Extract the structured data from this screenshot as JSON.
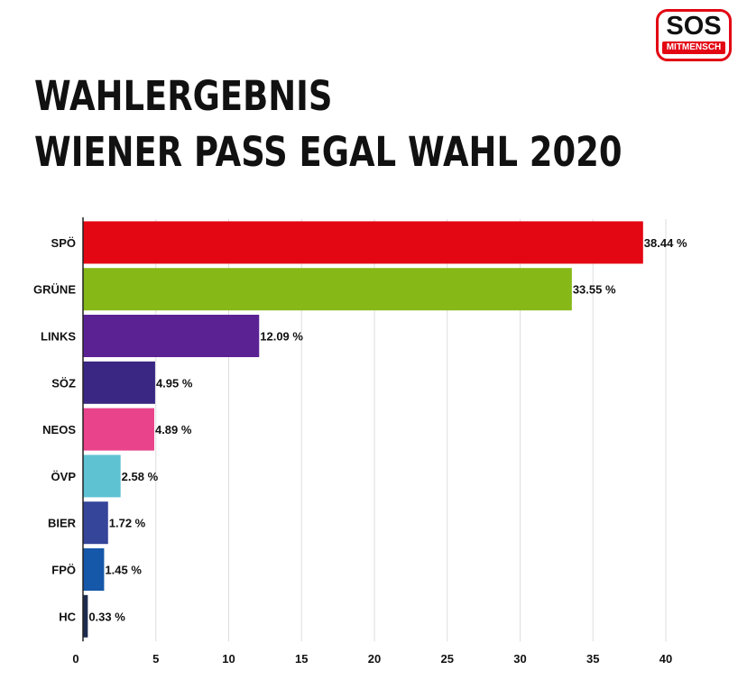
{
  "logo": {
    "big": "SOS",
    "small": "MITMENSCH"
  },
  "title": {
    "line1": "WAHLERGEBNIS",
    "line2": "WIENER PASS EGAL WAHL 2020"
  },
  "chart_data": {
    "type": "bar",
    "orientation": "horizontal",
    "categories": [
      "SPÖ",
      "GRÜNE",
      "LINKS",
      "SÖZ",
      "NEOS",
      "ÖVP",
      "BIER",
      "FPÖ",
      "HC"
    ],
    "values": [
      38.44,
      33.55,
      12.09,
      4.95,
      4.89,
      2.58,
      1.72,
      1.45,
      0.33
    ],
    "value_labels": [
      "38.44 %",
      "33.55 %",
      "12.09 %",
      "4.95 %",
      "4.89 %",
      "2.58 %",
      "1.72 %",
      "1.45 %",
      "0.33 %"
    ],
    "colors": [
      "#e30613",
      "#86b817",
      "#5b2294",
      "#3a2683",
      "#e8438b",
      "#5fc2d3",
      "#35459a",
      "#1557a8",
      "#1d2b4f"
    ],
    "xlim": [
      0,
      40
    ],
    "xticks": [
      0,
      5,
      10,
      15,
      20,
      25,
      30,
      35,
      40
    ],
    "xtick_labels": [
      "0",
      "5",
      "10",
      "15",
      "20",
      "25",
      "30",
      "35",
      "40"
    ],
    "grid": "vertical",
    "xlabel": "",
    "ylabel": ""
  }
}
